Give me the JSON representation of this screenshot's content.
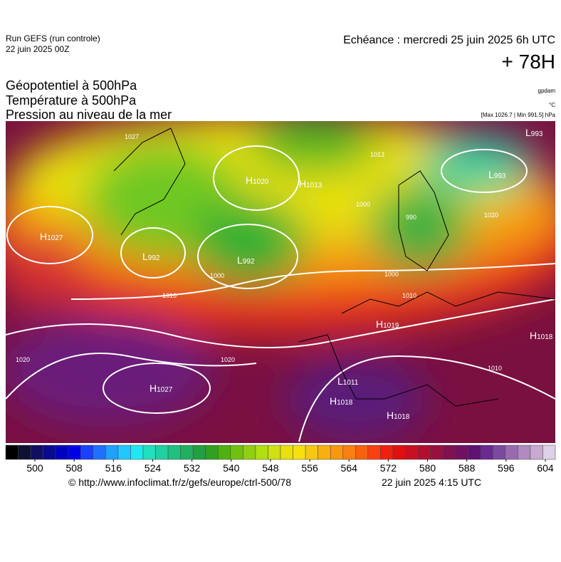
{
  "header": {
    "run": "Run GEFS (run controle)",
    "run_date": "22 juin 2025 00Z",
    "valid": "Echéance : mercredi 25 juin 2025 6h UTC",
    "lead": "+ 78H",
    "titles": [
      "Géopotentiel à 500hPa",
      "Température à 500hPa",
      "Pression au niveau de la mer"
    ],
    "units": [
      "gpdam",
      "°C",
      "[Max 1026.7 | Min 991.5] hPa"
    ]
  },
  "map": {
    "centers": [
      {
        "kind": "H",
        "value": "1027"
      },
      {
        "kind": "L",
        "value": "992"
      },
      {
        "kind": "H",
        "value": "1020"
      },
      {
        "kind": "L",
        "value": "992"
      },
      {
        "kind": "H",
        "value": "1013"
      },
      {
        "kind": "L",
        "value": "993"
      },
      {
        "kind": "L",
        "value": "993"
      },
      {
        "kind": "H",
        "value": "1019"
      },
      {
        "kind": "H",
        "value": "1018"
      },
      {
        "kind": "H",
        "value": "1027"
      },
      {
        "kind": "L",
        "value": "1011"
      },
      {
        "kind": "H",
        "value": "1018"
      },
      {
        "kind": "H",
        "value": "1018"
      }
    ],
    "isobar_labels": [
      "1027",
      "1013",
      "1000",
      "1000",
      "1010",
      "1010",
      "1000",
      "1020",
      "1020",
      "1020",
      "1010",
      "990"
    ]
  },
  "colorbar": {
    "ticks": [
      500,
      508,
      516,
      524,
      532,
      540,
      548,
      556,
      564,
      572,
      580,
      588,
      596,
      604
    ]
  },
  "footer": {
    "url": "© http://www.infoclimat.fr/z/gefs/europe/ctrl-500/78",
    "issued": "22 juin 2025  4:15 UTC"
  }
}
